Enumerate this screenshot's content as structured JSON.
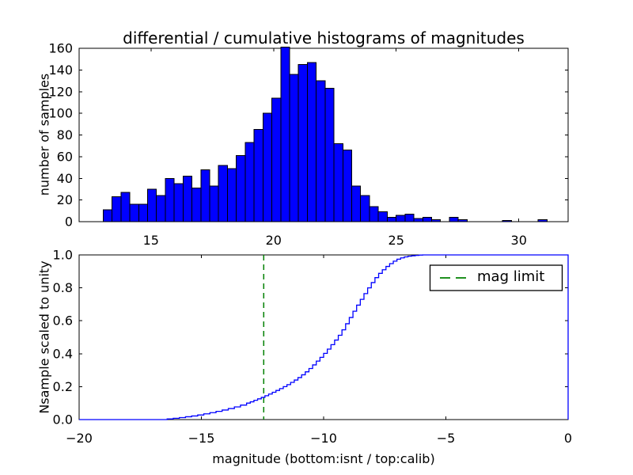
{
  "title": "differential / cumulative histograms of magnitudes",
  "colors": {
    "bar_fill": "#0000ff",
    "bar_edge": "#000000",
    "curve": "#0000ff",
    "mag_limit_green": "#008000",
    "axis": "#000000",
    "background": "#ffffff"
  },
  "top_plot": {
    "ylabel": "number of samples",
    "ytick_labels": [
      "0",
      "20",
      "40",
      "60",
      "80",
      "100",
      "120",
      "140",
      "160"
    ],
    "xtick_labels": [
      "15",
      "20",
      "25",
      "30"
    ]
  },
  "bottom_plot": {
    "ylabel": "Nsample scaled to unity",
    "xlabel": "magnitude (bottom:isnt / top:calib)",
    "ytick_labels": [
      "0.0",
      "0.2",
      "0.4",
      "0.6",
      "0.8",
      "1.0"
    ],
    "xtick_labels": [
      "−20",
      "−15",
      "−10",
      "−5",
      "0"
    ],
    "legend": {
      "label": "mag limit"
    }
  },
  "chart_data": [
    {
      "type": "bar",
      "subplot": "top",
      "title": "differential / cumulative histograms of magnitudes",
      "ylabel": "number of samples",
      "bin_start": 13.05,
      "bin_width": 0.362,
      "counts": [
        11,
        23,
        27,
        16,
        16,
        30,
        24,
        40,
        35,
        42,
        31,
        48,
        33,
        52,
        49,
        61,
        73,
        85,
        100,
        114,
        161,
        136,
        145,
        147,
        130,
        123,
        72,
        66,
        33,
        24,
        14,
        9,
        4,
        6,
        7,
        3,
        4,
        2,
        0,
        4,
        2,
        0,
        0,
        0,
        0,
        1,
        0,
        0,
        0,
        2
      ],
      "xlim": [
        12.07,
        32.01
      ],
      "ylim": [
        0,
        160
      ],
      "xticks": [
        15,
        20,
        25,
        30
      ],
      "yticks": [
        0,
        20,
        40,
        60,
        80,
        100,
        120,
        140,
        160
      ],
      "bar_color": "#0000ff",
      "bar_edge": "#000000",
      "grid": false
    },
    {
      "type": "line",
      "subplot": "bottom",
      "style": "cumulative-step",
      "ylabel": "Nsample scaled to unity",
      "xlabel": "magnitude (bottom:isnt / top:calib)",
      "xlim": [
        -20,
        0
      ],
      "ylim": [
        0,
        1
      ],
      "xticks": [
        -20,
        -15,
        -10,
        -5,
        0
      ],
      "yticks": [
        0,
        0.2,
        0.4,
        0.6,
        0.8,
        1.0
      ],
      "line_color": "#0000ff",
      "grid": false,
      "legend_position": "upper right",
      "mag_limit": {
        "x": -12.45,
        "color": "#008000",
        "style": "dashed",
        "label": "mag limit"
      },
      "end_drop_x": 0,
      "points": [
        [
          -16.4,
          0.004
        ],
        [
          -16.15,
          0.008
        ],
        [
          -15.9,
          0.012
        ],
        [
          -15.65,
          0.017
        ],
        [
          -15.4,
          0.022
        ],
        [
          -15.15,
          0.028
        ],
        [
          -14.9,
          0.035
        ],
        [
          -14.65,
          0.042
        ],
        [
          -14.4,
          0.05
        ],
        [
          -14.15,
          0.058
        ],
        [
          -13.9,
          0.067
        ],
        [
          -13.65,
          0.077
        ],
        [
          -13.4,
          0.088
        ],
        [
          -13.15,
          0.1
        ],
        [
          -13.0,
          0.108
        ],
        [
          -12.85,
          0.117
        ],
        [
          -12.7,
          0.126
        ],
        [
          -12.55,
          0.135
        ],
        [
          -12.4,
          0.145
        ],
        [
          -12.25,
          0.155
        ],
        [
          -12.1,
          0.166
        ],
        [
          -11.95,
          0.177
        ],
        [
          -11.8,
          0.188
        ],
        [
          -11.65,
          0.2
        ],
        [
          -11.5,
          0.212
        ],
        [
          -11.35,
          0.226
        ],
        [
          -11.2,
          0.24
        ],
        [
          -11.05,
          0.255
        ],
        [
          -10.9,
          0.272
        ],
        [
          -10.75,
          0.29
        ],
        [
          -10.6,
          0.31
        ],
        [
          -10.45,
          0.332
        ],
        [
          -10.3,
          0.355
        ],
        [
          -10.15,
          0.378
        ],
        [
          -10.0,
          0.402
        ],
        [
          -9.85,
          0.428
        ],
        [
          -9.7,
          0.455
        ],
        [
          -9.55,
          0.483
        ],
        [
          -9.4,
          0.512
        ],
        [
          -9.25,
          0.545
        ],
        [
          -9.1,
          0.582
        ],
        [
          -8.95,
          0.62
        ],
        [
          -8.8,
          0.658
        ],
        [
          -8.65,
          0.695
        ],
        [
          -8.5,
          0.73
        ],
        [
          -8.35,
          0.765
        ],
        [
          -8.2,
          0.8
        ],
        [
          -8.05,
          0.832
        ],
        [
          -7.9,
          0.862
        ],
        [
          -7.75,
          0.888
        ],
        [
          -7.6,
          0.91
        ],
        [
          -7.45,
          0.93
        ],
        [
          -7.3,
          0.947
        ],
        [
          -7.15,
          0.962
        ],
        [
          -7.0,
          0.974
        ],
        [
          -6.85,
          0.982
        ],
        [
          -6.7,
          0.988
        ],
        [
          -6.55,
          0.992
        ],
        [
          -6.4,
          0.995
        ],
        [
          -6.25,
          0.997
        ],
        [
          -6.1,
          0.999
        ],
        [
          -5.95,
          1.0
        ]
      ]
    }
  ]
}
